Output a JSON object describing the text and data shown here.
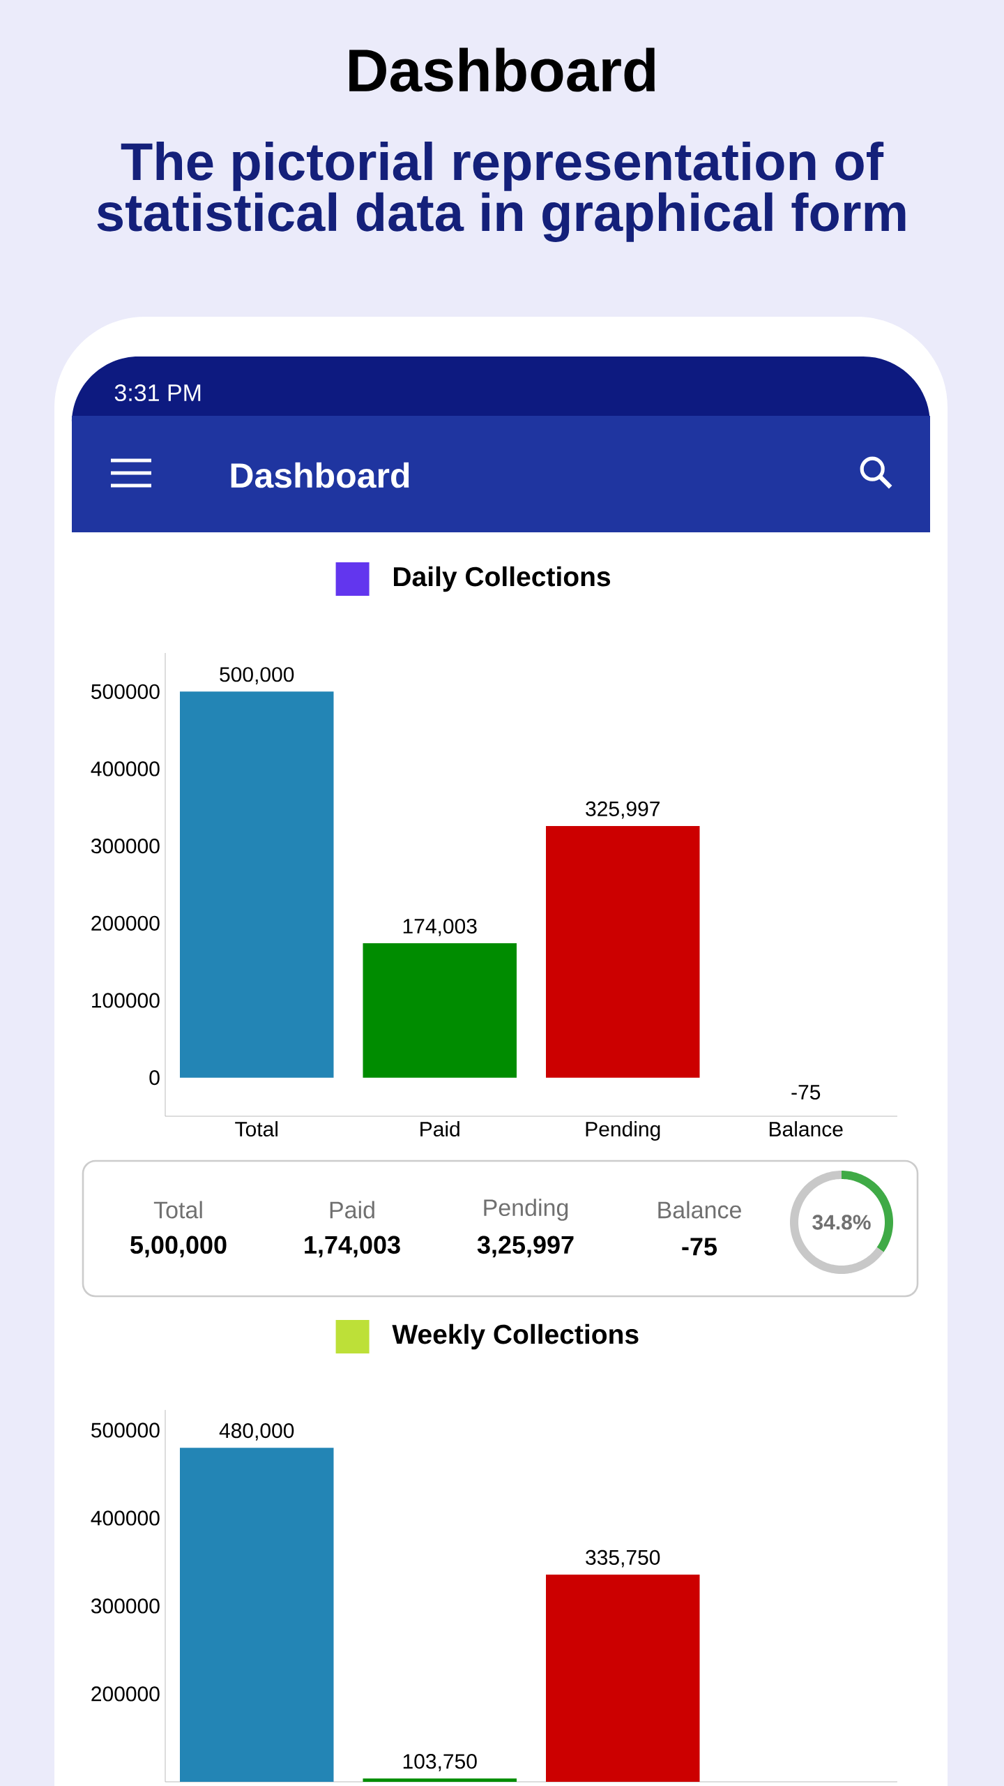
{
  "chart_data": [
    {
      "type": "other",
      "title": "Dashboard",
      "subtitle": "The pictorial representation of statistical data in graphical form",
      "annotations": [
        "3:31 PM",
        "Dashboard"
      ]
    },
    {
      "type": "bar",
      "categories": [
        "Total",
        "Paid",
        "Pending",
        "Balance"
      ],
      "legend": "top",
      "ylim": [
        -50000,
        550000
      ],
      "yticks": [
        0,
        100000,
        200000,
        300000,
        400000,
        500000
      ],
      "series": [
        {
          "name": "Daily Collections",
          "color": "#6236ee",
          "colors": [
            "#2385b5",
            "#008c00",
            "#cc0000",
            "#f5a623"
          ],
          "values": [
            500000,
            174003,
            325997,
            -75
          ],
          "value_labels": [
            "500,000",
            "174,003",
            "325,997",
            "-75"
          ]
        }
      ]
    },
    {
      "type": "donut",
      "categories": [
        null,
        null
      ],
      "values": [
        34.8,
        65.2
      ],
      "colors": [
        "#3faa46",
        "#c8c8c8"
      ],
      "annotations": [
        "Total",
        "5,00,000",
        "Paid",
        "1,74,003",
        "Pending",
        "3,25,997",
        "Balance",
        "-75",
        "34.8%"
      ]
    },
    {
      "type": "bar",
      "categories": [
        null,
        null,
        null,
        null
      ],
      "legend": "top",
      "ylim": [
        100000,
        523000
      ],
      "yticks": [
        200000,
        300000,
        400000,
        500000
      ],
      "series": [
        {
          "name": "Weekly Collections",
          "color": "#bde038",
          "colors": [
            "#2385b5",
            "#008c00",
            "#cc0000",
            "#f5a623"
          ],
          "values": [
            480000,
            103750,
            335750,
            null
          ],
          "value_labels": [
            "480,000",
            "103,750",
            "335,750",
            null
          ]
        }
      ]
    }
  ]
}
